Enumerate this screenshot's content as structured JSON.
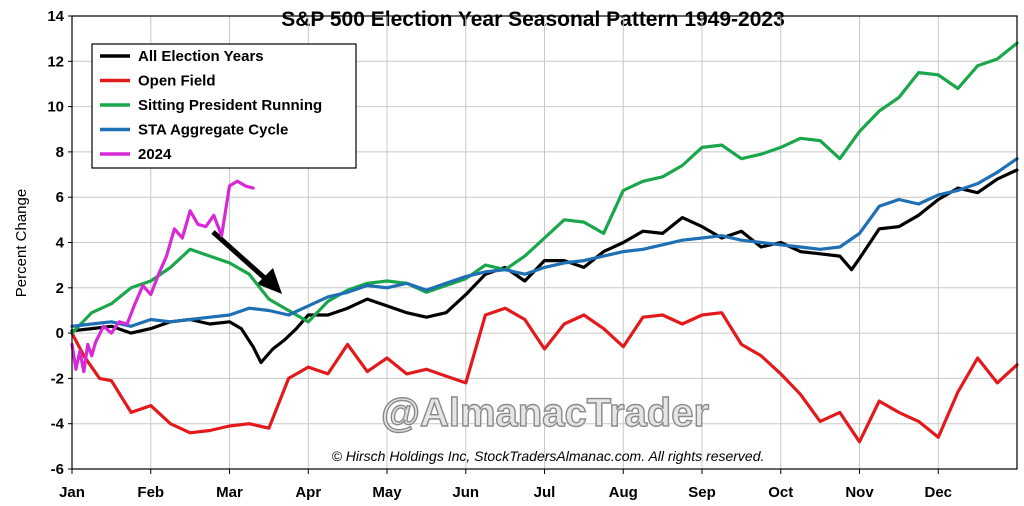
{
  "chart_data": {
    "type": "line",
    "title": "S&P 500 Election Year Seasonal Pattern 1949-2023",
    "xlabel": "",
    "ylabel": "Percent Change",
    "ylim": [
      -6,
      14
    ],
    "yticks": [
      -6,
      -4,
      -2,
      0,
      2,
      4,
      6,
      8,
      10,
      12,
      14
    ],
    "xlim": [
      0,
      12
    ],
    "month_labels": [
      "Jan",
      "Feb",
      "Mar",
      "Apr",
      "May",
      "Jun",
      "Jul",
      "Aug",
      "Sep",
      "Oct",
      "Nov",
      "Dec"
    ],
    "grid": true,
    "legend_position": "top-left",
    "x_unit": "months elapsed in year (0 = start of Jan, 12 = end of Dec)",
    "series": [
      {
        "name": "All Election Years",
        "color": "#000000",
        "x": [
          0,
          0.25,
          0.5,
          0.75,
          1,
          1.25,
          1.5,
          1.75,
          2,
          2.15,
          2.3,
          2.4,
          2.55,
          2.7,
          2.85,
          3,
          3.25,
          3.5,
          3.75,
          4,
          4.25,
          4.5,
          4.75,
          5,
          5.25,
          5.5,
          5.75,
          6,
          6.25,
          6.5,
          6.75,
          7,
          7.25,
          7.5,
          7.75,
          8,
          8.25,
          8.5,
          8.75,
          9,
          9.25,
          9.5,
          9.75,
          9.9,
          10,
          10.25,
          10.5,
          10.75,
          11,
          11.25,
          11.5,
          11.75,
          12
        ],
        "y": [
          0.1,
          0.2,
          0.3,
          0.0,
          0.2,
          0.5,
          0.6,
          0.4,
          0.5,
          0.2,
          -0.6,
          -1.3,
          -0.7,
          -0.3,
          0.2,
          0.8,
          0.8,
          1.1,
          1.5,
          1.2,
          0.9,
          0.7,
          0.9,
          1.7,
          2.6,
          2.9,
          2.3,
          3.2,
          3.2,
          2.9,
          3.6,
          4.0,
          4.5,
          4.4,
          5.1,
          4.7,
          4.2,
          4.5,
          3.8,
          4.0,
          3.6,
          3.5,
          3.4,
          2.8,
          3.3,
          4.6,
          4.7,
          5.2,
          5.9,
          6.4,
          6.2,
          6.8,
          7.2
        ]
      },
      {
        "name": "Open Field",
        "color": "#e31a1c",
        "x": [
          0,
          0.15,
          0.35,
          0.5,
          0.75,
          1,
          1.25,
          1.5,
          1.75,
          2,
          2.25,
          2.5,
          2.75,
          3,
          3.25,
          3.5,
          3.75,
          4,
          4.25,
          4.5,
          4.75,
          5,
          5.25,
          5.5,
          5.75,
          6,
          6.25,
          6.5,
          6.75,
          7,
          7.25,
          7.5,
          7.75,
          8,
          8.25,
          8.5,
          8.75,
          9,
          9.25,
          9.5,
          9.75,
          10,
          10.25,
          10.5,
          10.75,
          11,
          11.25,
          11.5,
          11.75,
          12
        ],
        "y": [
          0,
          -1.0,
          -2.0,
          -2.1,
          -3.5,
          -3.2,
          -4.0,
          -4.4,
          -4.3,
          -4.1,
          -4.0,
          -4.2,
          -2.0,
          -1.5,
          -1.8,
          -0.5,
          -1.7,
          -1.1,
          -1.8,
          -1.6,
          -1.9,
          -2.2,
          0.8,
          1.1,
          0.6,
          -0.7,
          0.4,
          0.8,
          0.2,
          -0.6,
          0.7,
          0.8,
          0.4,
          0.8,
          0.9,
          -0.5,
          -1.0,
          -1.8,
          -2.7,
          -3.9,
          -3.5,
          -4.8,
          -3.0,
          -3.5,
          -3.9,
          -4.6,
          -2.6,
          -1.1,
          -2.2,
          -1.4
        ]
      },
      {
        "name": "Sitting President Running",
        "color": "#1aa64a",
        "x": [
          0,
          0.25,
          0.5,
          0.75,
          1,
          1.25,
          1.5,
          1.75,
          2,
          2.25,
          2.5,
          2.75,
          3,
          3.25,
          3.5,
          3.75,
          4,
          4.25,
          4.5,
          4.75,
          5,
          5.25,
          5.5,
          5.75,
          6,
          6.25,
          6.5,
          6.75,
          7,
          7.25,
          7.5,
          7.75,
          8,
          8.25,
          8.5,
          8.75,
          9,
          9.25,
          9.5,
          9.75,
          10,
          10.25,
          10.5,
          10.75,
          11,
          11.25,
          11.5,
          11.75,
          12
        ],
        "y": [
          0.0,
          0.9,
          1.3,
          2.0,
          2.3,
          2.9,
          3.7,
          3.4,
          3.1,
          2.6,
          1.5,
          1.0,
          0.5,
          1.4,
          1.9,
          2.2,
          2.3,
          2.2,
          1.8,
          2.1,
          2.4,
          3.0,
          2.8,
          3.4,
          4.2,
          5.0,
          4.9,
          4.4,
          6.3,
          6.7,
          6.9,
          7.4,
          8.2,
          8.3,
          7.7,
          7.9,
          8.2,
          8.6,
          8.5,
          7.7,
          8.9,
          9.8,
          10.4,
          11.5,
          11.4,
          10.8,
          11.8,
          12.1,
          12.8
        ]
      },
      {
        "name": "STA Aggregate Cycle",
        "color": "#1f6fb5",
        "x": [
          0,
          0.25,
          0.5,
          0.75,
          1,
          1.25,
          1.5,
          1.75,
          2,
          2.25,
          2.5,
          2.75,
          3,
          3.25,
          3.5,
          3.75,
          4,
          4.25,
          4.5,
          4.75,
          5,
          5.25,
          5.5,
          5.75,
          6,
          6.25,
          6.5,
          6.75,
          7,
          7.25,
          7.5,
          7.75,
          8,
          8.25,
          8.5,
          8.75,
          9,
          9.25,
          9.5,
          9.75,
          10,
          10.25,
          10.5,
          10.75,
          11,
          11.25,
          11.5,
          11.75,
          12
        ],
        "y": [
          0.3,
          0.4,
          0.5,
          0.3,
          0.6,
          0.5,
          0.6,
          0.7,
          0.8,
          1.1,
          1.0,
          0.8,
          1.2,
          1.6,
          1.8,
          2.1,
          2.0,
          2.2,
          1.9,
          2.2,
          2.5,
          2.7,
          2.8,
          2.6,
          2.9,
          3.1,
          3.2,
          3.4,
          3.6,
          3.7,
          3.9,
          4.1,
          4.2,
          4.3,
          4.1,
          4.0,
          3.9,
          3.8,
          3.7,
          3.8,
          4.4,
          5.6,
          5.9,
          5.7,
          6.1,
          6.3,
          6.6,
          7.1,
          7.7
        ]
      },
      {
        "name": "2024",
        "color": "#d62ad6",
        "x": [
          0,
          0.05,
          0.1,
          0.15,
          0.2,
          0.25,
          0.3,
          0.4,
          0.5,
          0.6,
          0.7,
          0.8,
          0.9,
          0.95,
          1.0,
          1.1,
          1.2,
          1.3,
          1.4,
          1.5,
          1.6,
          1.7,
          1.8,
          1.9,
          2.0,
          2.1,
          2.2,
          2.3
        ],
        "y": [
          -0.5,
          -1.6,
          -0.8,
          -1.7,
          -0.5,
          -1.0,
          -0.4,
          0.3,
          0.0,
          0.5,
          0.4,
          1.3,
          2.1,
          1.9,
          1.7,
          2.6,
          3.4,
          4.6,
          4.2,
          5.4,
          4.8,
          4.7,
          5.2,
          4.3,
          6.5,
          6.7,
          6.5,
          6.4
        ]
      }
    ]
  },
  "watermark": "@AlmanacTrader",
  "copyright": "© Hirsch Holdings Inc, StockTradersAlmanac.com. All rights reserved."
}
